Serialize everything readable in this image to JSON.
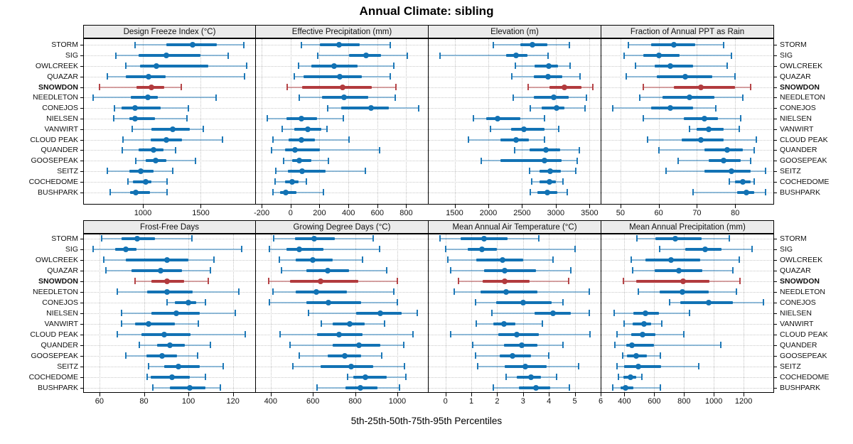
{
  "title": "Annual Climate: sibling",
  "footer": "5th-25th-50th-75th-95th Percentiles",
  "highlight_station": "SNOWDON",
  "colors": {
    "normal": "#1272b4",
    "highlight": "#b23b3e",
    "strip_bg": "#ebebeb",
    "grid": "#c6c6c6",
    "border": "#000000"
  },
  "stations": [
    "STORM",
    "SIG",
    "OWLCREEK",
    "QUAZAR",
    "SNOWDON",
    "NEEDLETON",
    "CONEJOS",
    "NIELSEN",
    "VANWIRT",
    "CLOUD PEAK",
    "QUANDER",
    "GOOSEPEAK",
    "SEITZ",
    "COCHEDOME",
    "BUSHPARK"
  ],
  "chart_data": {
    "type": "percentile-dotplot",
    "percentile_labels": [
      "5th",
      "25th",
      "50th",
      "75th",
      "95th"
    ],
    "legend_position": "none",
    "grid": "dotted",
    "stations": [
      "STORM",
      "SIG",
      "OWLCREEK",
      "QUAZAR",
      "SNOWDON",
      "NEEDLETON",
      "CONEJOS",
      "NIELSEN",
      "VANWIRT",
      "CLOUD PEAK",
      "QUANDER",
      "GOOSEPEAK",
      "SEITZ",
      "COCHEDOME",
      "BUSHPARK"
    ],
    "highlight_station": "SNOWDON",
    "panels": [
      {
        "title": "Design Freeze Index (°C)",
        "row": 0,
        "col": 0,
        "xlim": [
          490,
          1970
        ],
        "ticks": [
          1000,
          1500
        ],
        "values": [
          [
            930,
            1200,
            1430,
            1640,
            1870
          ],
          [
            765,
            965,
            1200,
            1495,
            1735
          ],
          [
            850,
            975,
            1115,
            1565,
            1895
          ],
          [
            695,
            855,
            1050,
            1195,
            1880
          ],
          [
            625,
            945,
            1075,
            1185,
            1330
          ],
          [
            570,
            895,
            1040,
            1130,
            1630
          ],
          [
            755,
            815,
            930,
            1155,
            1395
          ],
          [
            745,
            885,
            935,
            1105,
            1380
          ],
          [
            905,
            1075,
            1260,
            1405,
            1520
          ],
          [
            830,
            1065,
            1200,
            1340,
            1685
          ],
          [
            820,
            960,
            1090,
            1180,
            1285
          ],
          [
            940,
            1025,
            1110,
            1200,
            1455
          ],
          [
            690,
            885,
            980,
            1090,
            1255
          ],
          [
            870,
            915,
            1025,
            1075,
            1210
          ],
          [
            720,
            890,
            940,
            1060,
            1210
          ]
        ]
      },
      {
        "title": "Effective Precipitation (mm)",
        "row": 0,
        "col": 1,
        "xlim": [
          -240,
          950
        ],
        "ticks": [
          -200,
          0,
          200,
          400,
          600,
          800
        ],
        "values": [
          [
            75,
            205,
            335,
            480,
            690
          ],
          [
            190,
            405,
            520,
            625,
            805
          ],
          [
            55,
            145,
            300,
            465,
            715
          ],
          [
            25,
            90,
            340,
            495,
            690
          ],
          [
            -25,
            80,
            360,
            560,
            730
          ],
          [
            60,
            215,
            370,
            535,
            725
          ],
          [
            255,
            350,
            555,
            680,
            885
          ],
          [
            -160,
            -30,
            75,
            185,
            365
          ],
          [
            -60,
            25,
            120,
            210,
            250
          ],
          [
            -120,
            -15,
            75,
            170,
            405
          ],
          [
            -130,
            -40,
            30,
            205,
            615
          ],
          [
            -50,
            10,
            60,
            145,
            260
          ],
          [
            -100,
            -20,
            80,
            240,
            515
          ],
          [
            -105,
            -40,
            10,
            55,
            110
          ],
          [
            -120,
            -75,
            -35,
            40,
            225
          ]
        ]
      },
      {
        "title": "Elevation (m)",
        "row": 0,
        "col": 2,
        "xlim": [
          1115,
          3665
        ],
        "ticks": [
          1500,
          2000,
          2500,
          3000,
          3500
        ],
        "values": [
          [
            2070,
            2470,
            2650,
            2875,
            3200
          ],
          [
            1280,
            2265,
            2415,
            2575,
            2885
          ],
          [
            2405,
            2685,
            2900,
            3030,
            3215
          ],
          [
            2345,
            2670,
            2885,
            3100,
            3360
          ],
          [
            2590,
            2910,
            3130,
            3385,
            3550
          ],
          [
            2365,
            2670,
            2970,
            3190,
            3455
          ],
          [
            2620,
            2795,
            3015,
            3125,
            3435
          ],
          [
            1780,
            1970,
            2140,
            2470,
            2830
          ],
          [
            2035,
            2340,
            2525,
            2830,
            3040
          ],
          [
            1710,
            2175,
            2410,
            2600,
            2830
          ],
          [
            2385,
            2615,
            2855,
            3065,
            3345
          ],
          [
            1890,
            2180,
            2830,
            3090,
            3315
          ],
          [
            2615,
            2760,
            2920,
            3075,
            3300
          ],
          [
            2645,
            2755,
            2910,
            3005,
            3110
          ],
          [
            2625,
            2730,
            2870,
            3025,
            3165
          ]
        ]
      },
      {
        "title": "Fraction of Annual PPT as Rain",
        "row": 0,
        "col": 3,
        "xlim": [
          45,
          90
        ],
        "ticks": [
          50,
          60,
          70,
          80
        ],
        "values": [
          [
            52,
            58,
            64,
            69.5,
            77
          ],
          [
            51,
            56,
            60,
            65.5,
            79
          ],
          [
            54,
            59,
            63,
            69,
            78
          ],
          [
            51.5,
            59.5,
            67,
            74,
            80
          ],
          [
            56,
            64,
            71,
            80,
            84
          ],
          [
            55,
            61,
            68,
            74.5,
            82
          ],
          [
            48,
            58,
            63,
            69,
            75
          ],
          [
            56,
            66.5,
            72,
            75.5,
            81.5
          ],
          [
            68,
            70,
            73,
            77,
            81
          ],
          [
            57,
            66,
            71,
            77,
            85.5
          ],
          [
            60,
            72,
            78,
            82,
            85
          ],
          [
            65,
            73,
            77,
            81.5,
            84
          ],
          [
            62,
            72,
            79,
            84,
            88
          ],
          [
            78.5,
            80,
            82,
            84,
            85
          ],
          [
            69,
            80.5,
            83,
            85,
            88
          ]
        ]
      },
      {
        "title": "Frost-Free Days",
        "row": 1,
        "col": 0,
        "xlim": [
          53,
          130
        ],
        "ticks": [
          60,
          80,
          100,
          120
        ],
        "values": [
          [
            61,
            70,
            77,
            85,
            101.5
          ],
          [
            57,
            67,
            72,
            76.5,
            124
          ],
          [
            62,
            72,
            90.5,
            100,
            111.5
          ],
          [
            63,
            74.5,
            87.5,
            97,
            110
          ],
          [
            76,
            83.5,
            90.5,
            98,
            109
          ],
          [
            68,
            81.5,
            90.5,
            102,
            122.5
          ],
          [
            90.5,
            94,
            100,
            103.5,
            107.5
          ],
          [
            70,
            83.5,
            94.5,
            105,
            121
          ],
          [
            70,
            76,
            82,
            94,
            104.5
          ],
          [
            68,
            79,
            89,
            101,
            125.5
          ],
          [
            78,
            86,
            91.5,
            98.5,
            110
          ],
          [
            72,
            81,
            88,
            95,
            104
          ],
          [
            82,
            89,
            95.5,
            105,
            115.5
          ],
          [
            81.5,
            83,
            92.5,
            100.5,
            107.5
          ],
          [
            84,
            91.5,
            100.5,
            107.5,
            114.5
          ]
        ]
      },
      {
        "title": "Growing Degree Days (°C)",
        "row": 1,
        "col": 1,
        "xlim": [
          330,
          1145
        ],
        "ticks": [
          400,
          600,
          800,
          1000
        ],
        "values": [
          [
            415,
            515,
            605,
            705,
            885
          ],
          [
            395,
            475,
            535,
            650,
            915
          ],
          [
            440,
            520,
            600,
            695,
            835
          ],
          [
            450,
            570,
            670,
            770,
            950
          ],
          [
            390,
            490,
            635,
            815,
            1000
          ],
          [
            410,
            520,
            615,
            760,
            985
          ],
          [
            395,
            570,
            675,
            830,
            1000
          ],
          [
            580,
            805,
            920,
            1020,
            1095
          ],
          [
            640,
            695,
            775,
            845,
            940
          ],
          [
            445,
            620,
            725,
            835,
            1075
          ],
          [
            490,
            695,
            820,
            920,
            1030
          ],
          [
            535,
            670,
            750,
            830,
            925
          ],
          [
            505,
            635,
            780,
            885,
            1035
          ],
          [
            765,
            790,
            850,
            950,
            1040
          ],
          [
            620,
            755,
            825,
            905,
            1010
          ]
        ]
      },
      {
        "title": "Mean Annual Air Temperature (°C)",
        "row": 1,
        "col": 2,
        "xlim": [
          -0.65,
          6.0
        ],
        "ticks": [
          0,
          1,
          2,
          3,
          4,
          5,
          6
        ],
        "values": [
          [
            -0.2,
            0.6,
            1.5,
            2.4,
            3.6
          ],
          [
            0,
            0.85,
            1.4,
            2,
            5
          ],
          [
            0.1,
            1.2,
            2.2,
            3,
            4.15
          ],
          [
            0.2,
            1.5,
            2.3,
            3.5,
            4.85
          ],
          [
            0.5,
            1.45,
            2.3,
            3.25,
            4.75
          ],
          [
            0.35,
            1.35,
            2.35,
            3.55,
            5.55
          ],
          [
            1.15,
            1.95,
            3,
            4.1,
            4.55
          ],
          [
            1.8,
            3.45,
            4.15,
            4.85,
            5.55
          ],
          [
            1.2,
            1.85,
            2.25,
            2.7,
            3.75
          ],
          [
            0.2,
            2.05,
            2.75,
            3.6,
            5.6
          ],
          [
            1.05,
            2.25,
            2.95,
            3.55,
            4.55
          ],
          [
            1.15,
            2.1,
            2.6,
            3.3,
            4
          ],
          [
            1.25,
            2.3,
            3.1,
            3.9,
            5.15
          ],
          [
            2.35,
            2.75,
            3.3,
            3.7,
            4.3
          ],
          [
            1.85,
            2.85,
            3.5,
            4.05,
            4.8
          ]
        ]
      },
      {
        "title": "Mean Annual Precipitation (mm)",
        "row": 1,
        "col": 3,
        "xlim": [
          245,
          1400
        ],
        "ticks": [
          400,
          600,
          800,
          1000,
          1200
        ],
        "values": [
          [
            485,
            610,
            740,
            920,
            1105
          ],
          [
            635,
            810,
            940,
            1050,
            1255
          ],
          [
            445,
            540,
            715,
            910,
            1170
          ],
          [
            455,
            605,
            765,
            925,
            1130
          ],
          [
            395,
            480,
            795,
            970,
            1175
          ],
          [
            495,
            635,
            790,
            965,
            1150
          ],
          [
            705,
            775,
            965,
            1130,
            1335
          ],
          [
            330,
            460,
            540,
            630,
            835
          ],
          [
            400,
            455,
            530,
            580,
            650
          ],
          [
            350,
            445,
            520,
            610,
            800
          ],
          [
            335,
            410,
            450,
            600,
            1045
          ],
          [
            390,
            415,
            480,
            550,
            640
          ],
          [
            350,
            400,
            495,
            645,
            900
          ],
          [
            360,
            395,
            440,
            480,
            515
          ],
          [
            320,
            375,
            405,
            460,
            640
          ]
        ]
      }
    ]
  }
}
